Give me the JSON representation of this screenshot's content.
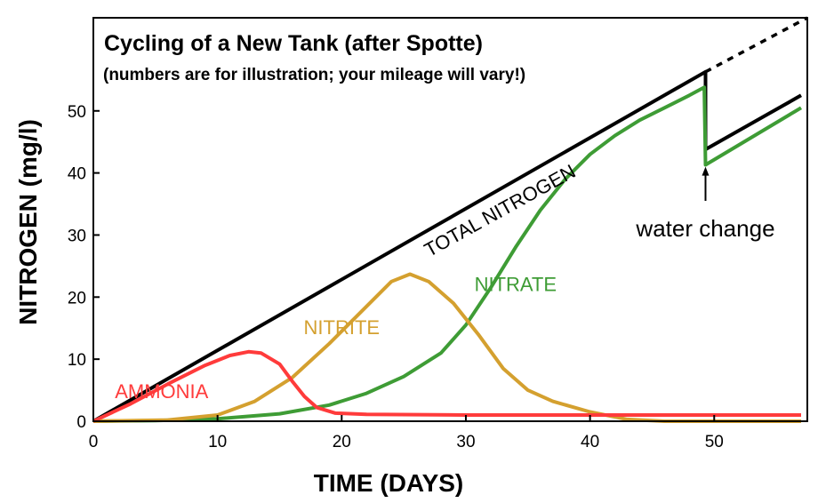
{
  "chart_data": {
    "type": "line",
    "title": "Cycling of a New Tank (after Spotte)",
    "subtitle": "(numbers are for illustration; your mileage will vary!)",
    "xlabel": "TIME (DAYS)",
    "ylabel": "NITROGEN (mg/l)",
    "xlim": [
      0,
      57.5
    ],
    "ylim": [
      0,
      65
    ],
    "xticks": [
      0,
      10,
      20,
      30,
      40,
      50
    ],
    "yticks": [
      0,
      10,
      20,
      30,
      40,
      50
    ],
    "grid": false,
    "series": [
      {
        "name": "TOTAL NITROGEN",
        "color": "#000000",
        "points": [
          [
            0,
            0
          ],
          [
            49.3,
            56.3
          ],
          [
            49.3,
            43.8
          ],
          [
            57,
            52.5
          ]
        ],
        "label_pos": [
          33,
          33
        ],
        "label_rotation": -29
      },
      {
        "name": "TOTAL NITROGEN (projected)",
        "color": "#000000",
        "dashed": true,
        "points": [
          [
            49.3,
            56.3
          ],
          [
            57.5,
            65
          ]
        ]
      },
      {
        "name": "NITRATE",
        "color": "#3e9c35",
        "points": [
          [
            0,
            0
          ],
          [
            5,
            0.1
          ],
          [
            10,
            0.4
          ],
          [
            15,
            1.2
          ],
          [
            19,
            2.6
          ],
          [
            22,
            4.5
          ],
          [
            25,
            7.2
          ],
          [
            28,
            11.0
          ],
          [
            30,
            15.5
          ],
          [
            32,
            21.5
          ],
          [
            34,
            28.0
          ],
          [
            36,
            34.0
          ],
          [
            38,
            39.0
          ],
          [
            40,
            43.0
          ],
          [
            42,
            46.0
          ],
          [
            44,
            48.5
          ],
          [
            46,
            50.5
          ],
          [
            48,
            52.5
          ],
          [
            49.2,
            53.8
          ],
          [
            49.3,
            41.3
          ],
          [
            57,
            50.5
          ]
        ],
        "label_pos": [
          34,
          21
        ]
      },
      {
        "name": "NITRITE",
        "color": "#d4a02f",
        "points": [
          [
            0,
            0
          ],
          [
            6,
            0.2
          ],
          [
            10,
            1.0
          ],
          [
            13,
            3.2
          ],
          [
            16,
            7.0
          ],
          [
            19,
            12.5
          ],
          [
            22,
            18.5
          ],
          [
            24,
            22.5
          ],
          [
            25.5,
            23.7
          ],
          [
            27,
            22.5
          ],
          [
            29,
            19.0
          ],
          [
            31,
            14.0
          ],
          [
            33,
            8.5
          ],
          [
            35,
            5.0
          ],
          [
            37,
            3.2
          ],
          [
            40,
            1.5
          ],
          [
            43,
            0.3
          ],
          [
            46,
            0
          ],
          [
            57,
            0
          ]
        ],
        "label_pos": [
          20,
          14
        ]
      },
      {
        "name": "AMMONIA",
        "color": "#ff3b3b",
        "points": [
          [
            0,
            0
          ],
          [
            3,
            2.8
          ],
          [
            6,
            6.0
          ],
          [
            9,
            9.0
          ],
          [
            11,
            10.6
          ],
          [
            12.5,
            11.2
          ],
          [
            13.5,
            11.0
          ],
          [
            15,
            9.2
          ],
          [
            16,
            6.5
          ],
          [
            17,
            4.0
          ],
          [
            18,
            2.2
          ],
          [
            19.5,
            1.3
          ],
          [
            22,
            1.1
          ],
          [
            30,
            1.0
          ],
          [
            57,
            1.0
          ]
        ],
        "label_pos": [
          5.5,
          3.7
        ]
      }
    ],
    "annotations": [
      {
        "text": "water change",
        "arrow_from": [
          49.3,
          35.5
        ],
        "arrow_to": [
          49.3,
          38.5
        ]
      }
    ]
  }
}
